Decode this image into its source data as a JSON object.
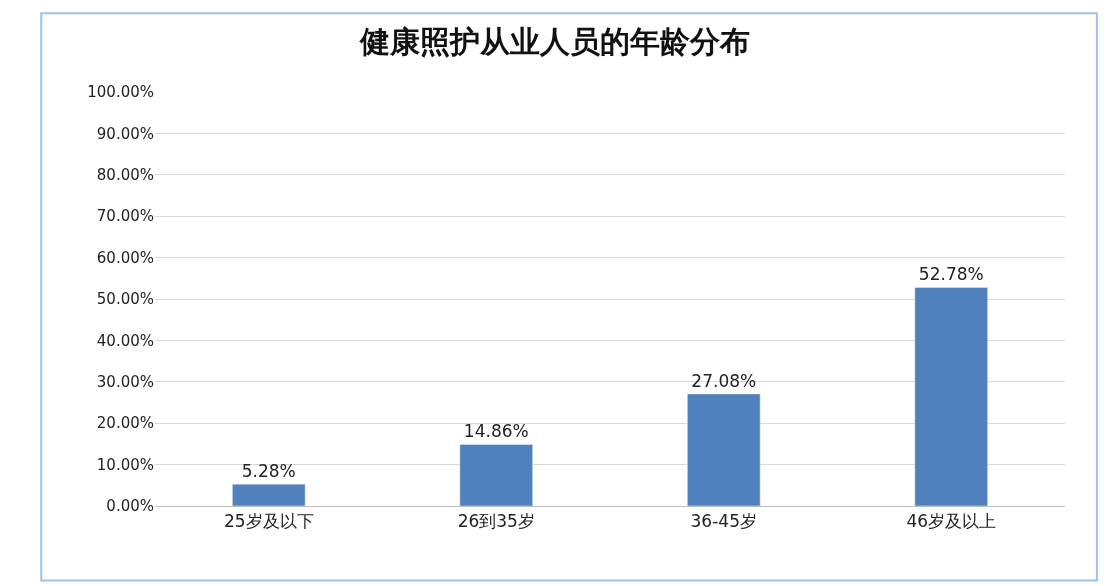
{
  "chart_data": {
    "type": "bar",
    "title": "健康照护从业人员的年龄分布",
    "categories": [
      "25岁及以下",
      "26到35岁",
      "36-45岁",
      "46岁及以上"
    ],
    "values": [
      5.28,
      14.86,
      27.08,
      52.78
    ],
    "value_labels": [
      "5.28%",
      "14.86%",
      "27.08%",
      "52.78%"
    ],
    "color": "#4f81bd",
    "ylim": [
      0,
      100
    ],
    "yticks": [
      {
        "value": 0,
        "label": "0.00%"
      },
      {
        "value": 10,
        "label": "10.00%"
      },
      {
        "value": 20,
        "label": "20.00%"
      },
      {
        "value": 30,
        "label": "30.00%"
      },
      {
        "value": 40,
        "label": "40.00%"
      },
      {
        "value": 50,
        "label": "50.00%"
      },
      {
        "value": 60,
        "label": "60.00%"
      },
      {
        "value": 70,
        "label": "70.00%"
      },
      {
        "value": 80,
        "label": "80.00%"
      },
      {
        "value": 90,
        "label": "90.00%"
      },
      {
        "value": 100,
        "label": "100.00%"
      }
    ],
    "grid": "y"
  }
}
